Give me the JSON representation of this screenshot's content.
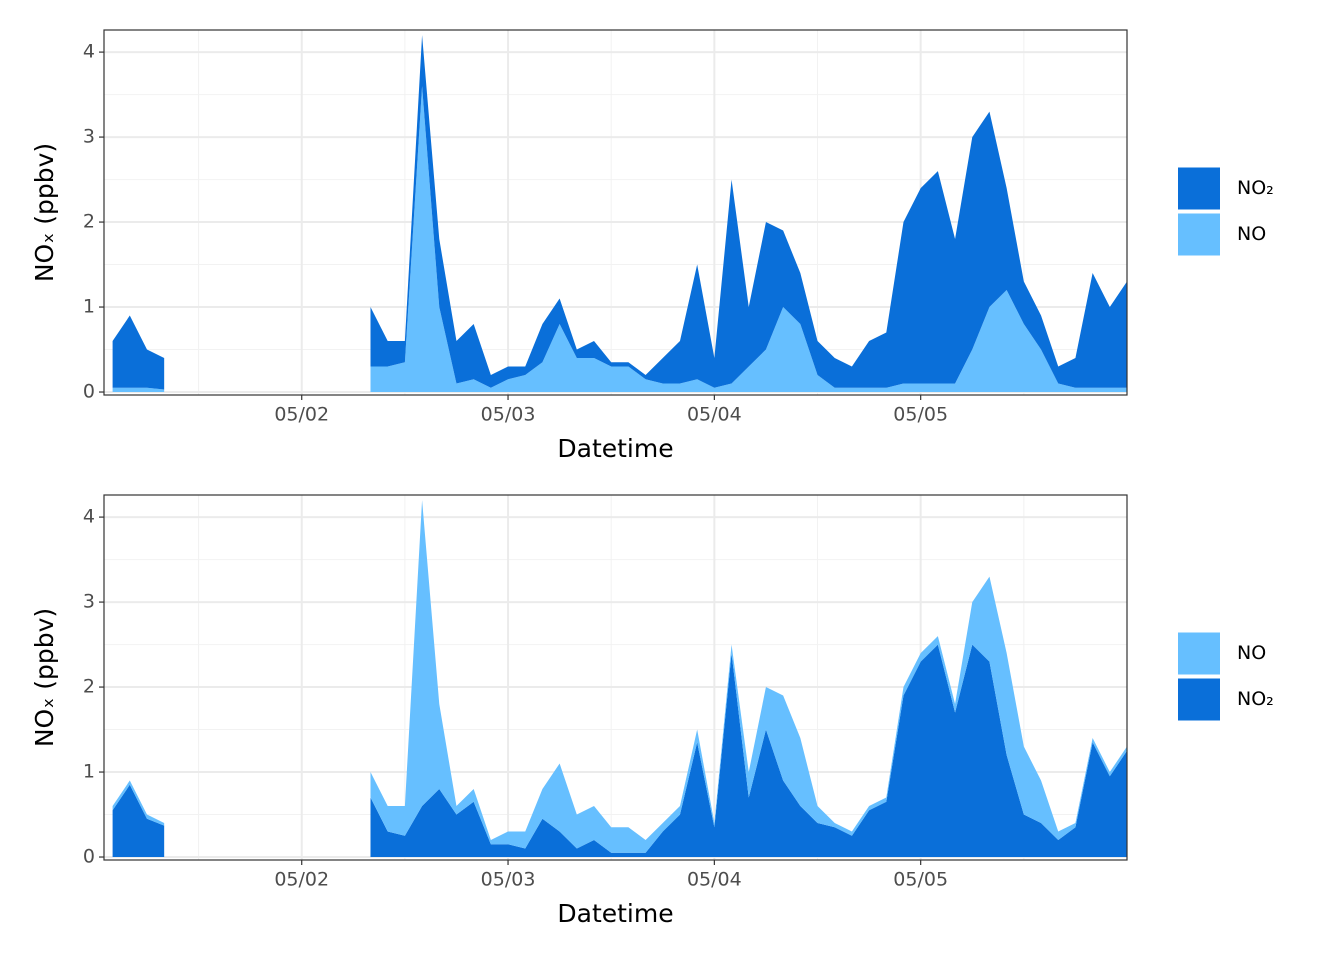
{
  "chart_data": [
    {
      "type": "stacked-area",
      "x_label": "Datetime",
      "y_label": "NOₓ  (ppbv)",
      "x": [
        26,
        28,
        30,
        32,
        34,
        36,
        38,
        40,
        42,
        44,
        46,
        48,
        50,
        52,
        54,
        56,
        58,
        60,
        62,
        64,
        66,
        68,
        70,
        72,
        74,
        76,
        78,
        80,
        82,
        84,
        86,
        88,
        90,
        92,
        94,
        96,
        98,
        100,
        102,
        104,
        106,
        108,
        110,
        112,
        114,
        116,
        118,
        120,
        122,
        124,
        126,
        128,
        130,
        132,
        134,
        136,
        138,
        140,
        142,
        144
      ],
      "xlim": [
        25,
        144
      ],
      "xticks": [
        {
          "value": 48,
          "label": "05/02"
        },
        {
          "value": 72,
          "label": "05/03"
        },
        {
          "value": 96,
          "label": "05/04"
        },
        {
          "value": 120,
          "label": "05/05"
        }
      ],
      "ylim": [
        -0.035,
        4.26
      ],
      "yticks": [
        0,
        1,
        2,
        3,
        4
      ],
      "grid": true,
      "series": [
        {
          "name": "NO₂",
          "color": "#0a6fd9",
          "values": [
            0.55,
            0.85,
            0.45,
            0.37,
            null,
            null,
            null,
            null,
            null,
            null,
            null,
            null,
            null,
            null,
            null,
            0.7,
            0.3,
            0.25,
            0.6,
            0.8,
            0.5,
            0.65,
            0.15,
            0.15,
            0.1,
            0.45,
            0.3,
            0.1,
            0.2,
            0.05,
            0.05,
            0.05,
            0.3,
            0.5,
            1.35,
            0.35,
            2.4,
            0.7,
            1.5,
            0.9,
            0.6,
            0.4,
            0.35,
            0.25,
            0.55,
            0.65,
            1.9,
            2.3,
            2.5,
            1.7,
            2.5,
            2.3,
            1.2,
            0.5,
            0.4,
            0.2,
            0.35,
            1.35,
            0.95,
            1.25
          ]
        },
        {
          "name": "NO",
          "color": "#66bfff",
          "values": [
            0.05,
            0.05,
            0.05,
            0.03,
            null,
            null,
            null,
            null,
            null,
            null,
            null,
            null,
            null,
            null,
            null,
            0.3,
            0.3,
            0.35,
            3.6,
            1.0,
            0.1,
            0.15,
            0.05,
            0.15,
            0.2,
            0.35,
            0.8,
            0.4,
            0.4,
            0.3,
            0.3,
            0.15,
            0.1,
            0.1,
            0.15,
            0.05,
            0.1,
            0.3,
            0.5,
            1.0,
            0.8,
            0.2,
            0.05,
            0.05,
            0.05,
            0.05,
            0.1,
            0.1,
            0.1,
            0.1,
            0.5,
            1.0,
            1.2,
            0.8,
            0.5,
            0.1,
            0.05,
            0.05,
            0.05,
            0.05
          ]
        }
      ]
    },
    {
      "type": "stacked-area",
      "x_label": "Datetime",
      "y_label": "NOₓ  (ppbv)",
      "x": [
        26,
        28,
        30,
        32,
        34,
        36,
        38,
        40,
        42,
        44,
        46,
        48,
        50,
        52,
        54,
        56,
        58,
        60,
        62,
        64,
        66,
        68,
        70,
        72,
        74,
        76,
        78,
        80,
        82,
        84,
        86,
        88,
        90,
        92,
        94,
        96,
        98,
        100,
        102,
        104,
        106,
        108,
        110,
        112,
        114,
        116,
        118,
        120,
        122,
        124,
        126,
        128,
        130,
        132,
        134,
        136,
        138,
        140,
        142,
        144
      ],
      "xlim": [
        25,
        144
      ],
      "xticks": [
        {
          "value": 48,
          "label": "05/02"
        },
        {
          "value": 72,
          "label": "05/03"
        },
        {
          "value": 96,
          "label": "05/04"
        },
        {
          "value": 120,
          "label": "05/05"
        }
      ],
      "ylim": [
        -0.035,
        4.26
      ],
      "yticks": [
        0,
        1,
        2,
        3,
        4
      ],
      "grid": true,
      "series": [
        {
          "name": "NO",
          "color": "#66bfff",
          "values": [
            0.05,
            0.05,
            0.05,
            0.03,
            null,
            null,
            null,
            null,
            null,
            null,
            null,
            null,
            null,
            null,
            null,
            0.3,
            0.3,
            0.35,
            3.6,
            1.0,
            0.1,
            0.15,
            0.05,
            0.15,
            0.2,
            0.35,
            0.8,
            0.4,
            0.4,
            0.3,
            0.3,
            0.15,
            0.1,
            0.1,
            0.15,
            0.05,
            0.1,
            0.3,
            0.5,
            1.0,
            0.8,
            0.2,
            0.05,
            0.05,
            0.05,
            0.05,
            0.1,
            0.1,
            0.1,
            0.1,
            0.5,
            1.0,
            1.2,
            0.8,
            0.5,
            0.1,
            0.05,
            0.05,
            0.05,
            0.05
          ]
        },
        {
          "name": "NO₂",
          "color": "#0a6fd9",
          "values": [
            0.55,
            0.85,
            0.45,
            0.37,
            null,
            null,
            null,
            null,
            null,
            null,
            null,
            null,
            null,
            null,
            null,
            0.7,
            0.3,
            0.25,
            0.6,
            0.8,
            0.5,
            0.65,
            0.15,
            0.15,
            0.1,
            0.45,
            0.3,
            0.1,
            0.2,
            0.05,
            0.05,
            0.05,
            0.3,
            0.5,
            1.35,
            0.35,
            2.4,
            0.7,
            1.5,
            0.9,
            0.6,
            0.4,
            0.35,
            0.25,
            0.55,
            0.65,
            1.9,
            2.3,
            2.5,
            1.7,
            2.5,
            2.3,
            1.2,
            0.5,
            0.4,
            0.2,
            0.35,
            1.35,
            0.95,
            1.25
          ]
        }
      ]
    }
  ]
}
